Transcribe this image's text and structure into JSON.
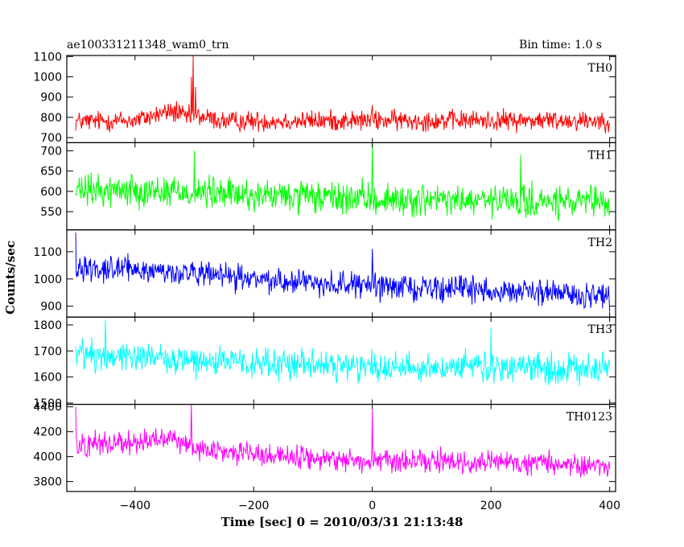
{
  "header": {
    "title": "ae100331211348_wam0_trn",
    "bin_time": "Bin time: 1.0 s"
  },
  "chart_data": {
    "type": "line",
    "xlabel": "Time [sec] 0 = 2010/03/31 21:13:48",
    "ylabel": "Counts/sec",
    "xlim": [
      -515,
      410
    ],
    "x_ticks": [
      -400,
      -200,
      0,
      200,
      400
    ],
    "x_tick_labels": [
      "−400",
      "−200",
      "0",
      "200",
      "400"
    ],
    "panels": [
      {
        "name": "TH0",
        "color": "#ff0000",
        "ylim": [
          675,
          1105
        ],
        "y_ticks": [
          700,
          800,
          900,
          1000,
          1100
        ],
        "y_tick_labels": [
          "700",
          "800",
          "900",
          "1000",
          "1100"
        ],
        "baseline": [
          [
            -500,
            780
          ],
          [
            -400,
            785
          ],
          [
            -340,
            830
          ],
          [
            -310,
            800
          ],
          [
            -300,
            810
          ],
          [
            -250,
            780
          ],
          [
            0,
            785
          ],
          [
            400,
            785
          ]
        ],
        "noise": 38,
        "spikes": [
          [
            -330,
            880
          ],
          [
            -305,
            1000
          ],
          [
            -302,
            1105
          ],
          [
            -298,
            950
          ],
          [
            0,
            860
          ]
        ]
      },
      {
        "name": "TH1",
        "color": "#00ff00",
        "ylim": [
          505,
          720
        ],
        "y_ticks": [
          550,
          600,
          650,
          700
        ],
        "y_tick_labels": [
          "550",
          "600",
          "650",
          "700"
        ],
        "baseline": [
          [
            -500,
            600
          ],
          [
            -400,
            605
          ],
          [
            -200,
            590
          ],
          [
            0,
            580
          ],
          [
            200,
            575
          ],
          [
            400,
            570
          ]
        ],
        "noise": 30,
        "spikes": [
          [
            -300,
            700
          ],
          [
            0,
            720
          ],
          [
            250,
            690
          ]
        ]
      },
      {
        "name": "TH2",
        "color": "#0000ff",
        "ylim": [
          860,
          1180
        ],
        "y_ticks": [
          900,
          1000,
          1100
        ],
        "y_tick_labels": [
          "900",
          "1000",
          "1100"
        ],
        "baseline": [
          [
            -500,
            1045
          ],
          [
            -400,
            1035
          ],
          [
            -200,
            1000
          ],
          [
            0,
            975
          ],
          [
            200,
            960
          ],
          [
            400,
            935
          ]
        ],
        "noise": 35,
        "spikes": [
          [
            -500,
            1170
          ],
          [
            0,
            1110
          ],
          [
            400,
            880
          ]
        ]
      },
      {
        "name": "TH3",
        "color": "#00ffff",
        "ylim": [
          1495,
          1830
        ],
        "y_ticks": [
          1500,
          1600,
          1700,
          1800
        ],
        "y_tick_labels": [
          "1500",
          "1600",
          "1700",
          "1800"
        ],
        "baseline": [
          [
            -500,
            1690
          ],
          [
            -400,
            1680
          ],
          [
            -200,
            1650
          ],
          [
            0,
            1640
          ],
          [
            200,
            1635
          ],
          [
            400,
            1630
          ]
        ],
        "noise": 45,
        "spikes": [
          [
            -450,
            1820
          ],
          [
            200,
            1790
          ]
        ]
      },
      {
        "name": "TH0123",
        "color": "#ff00ff",
        "ylim": [
          3720,
          4420
        ],
        "y_ticks": [
          3800,
          4000,
          4200,
          4400
        ],
        "y_tick_labels": [
          "3800",
          "4000",
          "4200",
          "4400"
        ],
        "baseline": [
          [
            -500,
            4100
          ],
          [
            -400,
            4120
          ],
          [
            -340,
            4160
          ],
          [
            -300,
            4060
          ],
          [
            -200,
            4020
          ],
          [
            0,
            3960
          ],
          [
            200,
            3950
          ],
          [
            400,
            3930
          ]
        ],
        "noise": 70,
        "spikes": [
          [
            -500,
            4400
          ],
          [
            -305,
            4420
          ],
          [
            0,
            4380
          ]
        ]
      }
    ]
  }
}
